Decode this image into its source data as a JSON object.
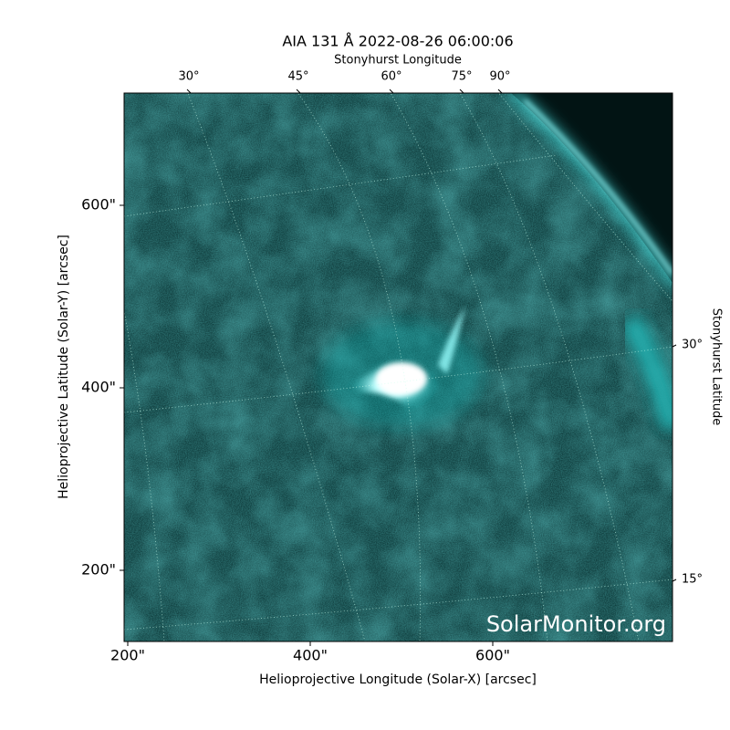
{
  "chart_data": {
    "type": "image",
    "title": "AIA 131 Å 2022-08-26 06:00:06",
    "x_label": "Helioprojective Longitude (Solar-X) [arcsec]",
    "y_label": "Helioprojective Latitude (Solar-Y) [arcsec]",
    "top_label": "Stonyhurst Longitude",
    "right_label": "Stonyhurst Latitude",
    "watermark": "SolarMonitor.org",
    "xlim": [
      196,
      797
    ],
    "ylim": [
      122,
      723
    ],
    "xticks": [
      {
        "value": 200,
        "label": "200\""
      },
      {
        "value": 400,
        "label": "400\""
      },
      {
        "value": 600,
        "label": "600\""
      }
    ],
    "yticks": [
      {
        "value": 200,
        "label": "200\""
      },
      {
        "value": 400,
        "label": "400\""
      },
      {
        "value": 600,
        "label": "600\""
      }
    ],
    "top_ticks": [
      {
        "value": 30,
        "label": "30°"
      },
      {
        "value": 45,
        "label": "45°"
      },
      {
        "value": 60,
        "label": "60°"
      },
      {
        "value": 75,
        "label": "75°"
      },
      {
        "value": 90,
        "label": "90°"
      }
    ],
    "right_ticks": [
      {
        "value": 30,
        "label": "30°"
      },
      {
        "value": 15,
        "label": "15°"
      }
    ]
  }
}
